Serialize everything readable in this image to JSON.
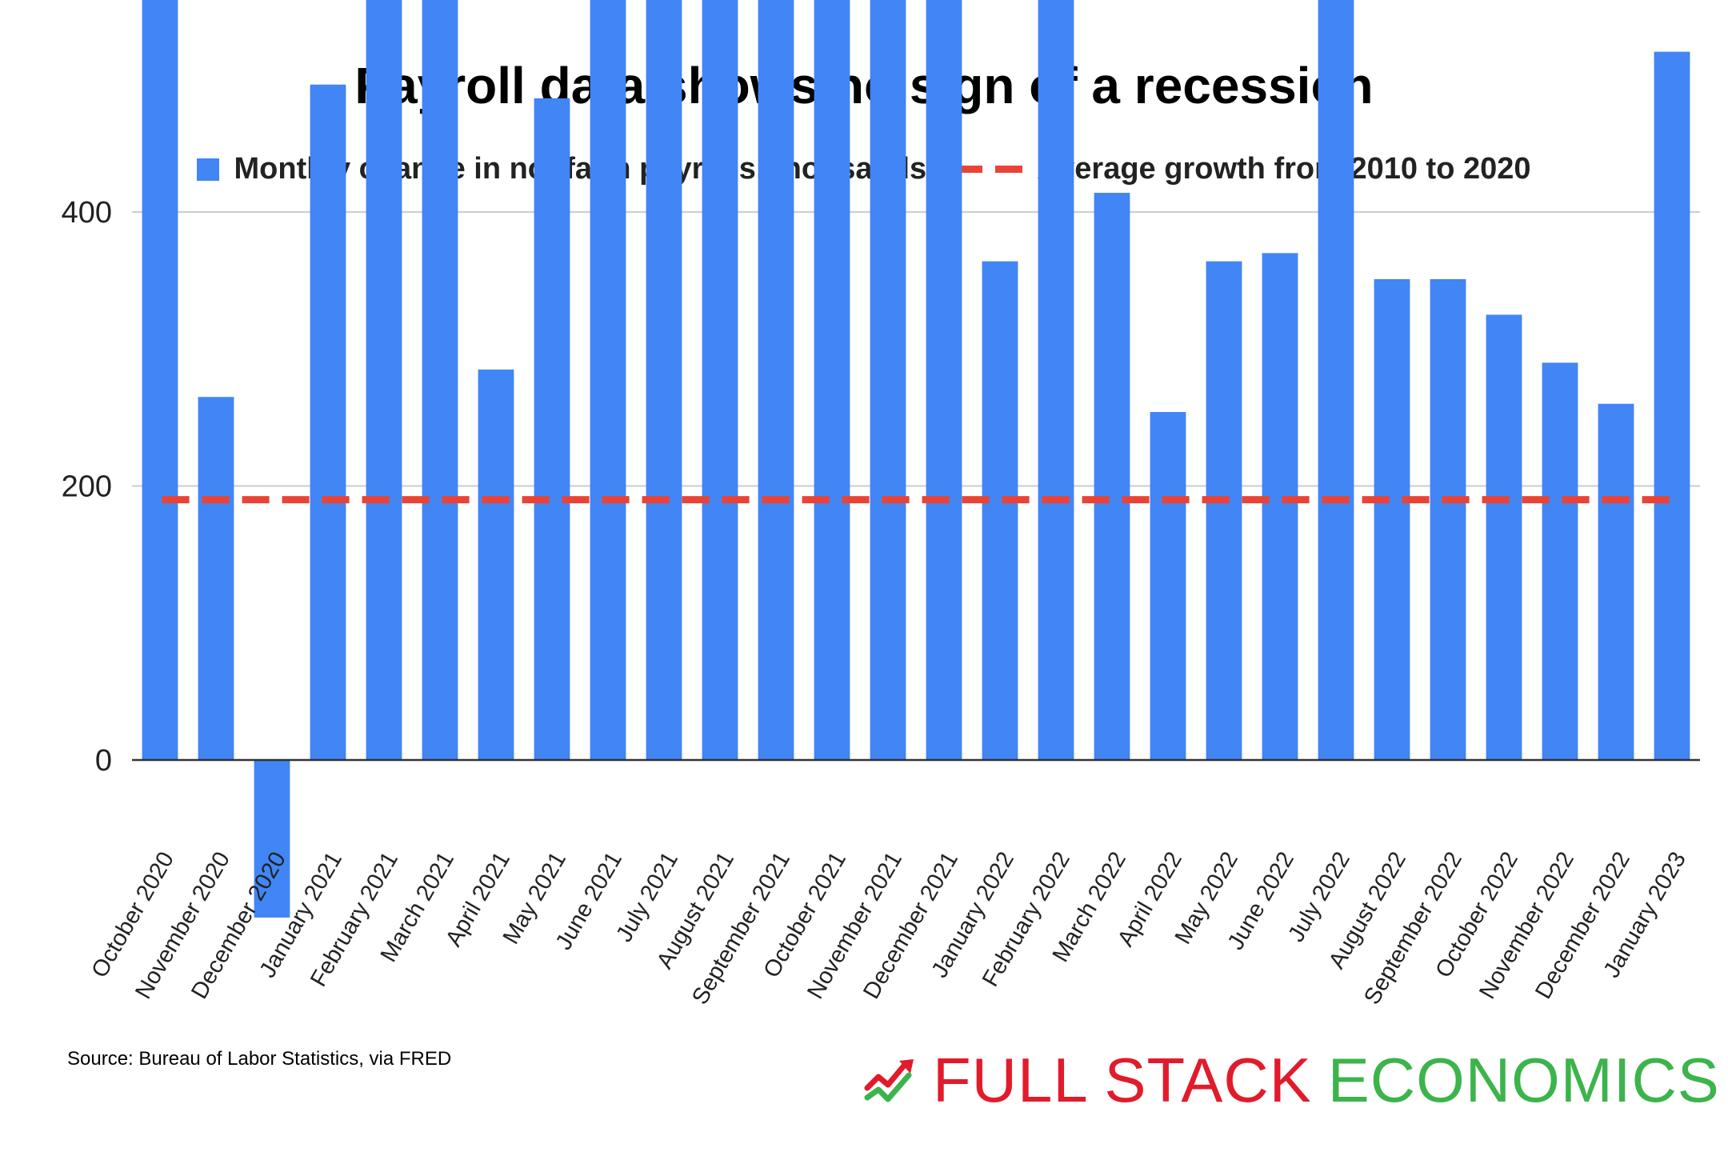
{
  "chart_data": {
    "type": "bar",
    "title": "Payroll data shows no sign of a recession",
    "xlabel": "",
    "ylabel": "",
    "ylim": [
      -115,
      745
    ],
    "yticks": [
      0,
      200,
      400,
      600
    ],
    "grid": true,
    "legend_position": "top",
    "categories": [
      "October 2020",
      "November 2020",
      "December 2020",
      "January 2021",
      "February 2021",
      "March 2021",
      "April 2021",
      "May 2021",
      "June 2021",
      "July 2021",
      "August 2021",
      "September 2021",
      "October 2021",
      "November 2021",
      "December 2021",
      "January 2022",
      "February 2022",
      "March 2022",
      "April 2022",
      "May 2022",
      "June 2022",
      "July 2022",
      "August 2022",
      "September 2022",
      "October 2022",
      "November 2022",
      "December 2022",
      "January 2023"
    ],
    "series": [
      {
        "name": "Monthly change in nonfarm payrolls, thousands",
        "color": "#4285f4",
        "values": [
          720,
          265,
          -115,
          493,
          575,
          745,
          285,
          483,
          693,
          745,
          662,
          557,
          745,
          614,
          570,
          364,
          745,
          414,
          254,
          364,
          370,
          568,
          351,
          351,
          325,
          290,
          260,
          517
        ]
      }
    ],
    "reference_line": {
      "name": "Average growth from 2010 to 2020",
      "value": 190,
      "color": "#ea4335",
      "style": "dashed"
    }
  },
  "footer": {
    "source": "Source: Bureau of Labor Statistics, via FRED"
  },
  "logo": {
    "word1": "FULL STACK",
    "word2": "ECONOMICS",
    "red": "#e21b2b",
    "green": "#3cb44b"
  }
}
